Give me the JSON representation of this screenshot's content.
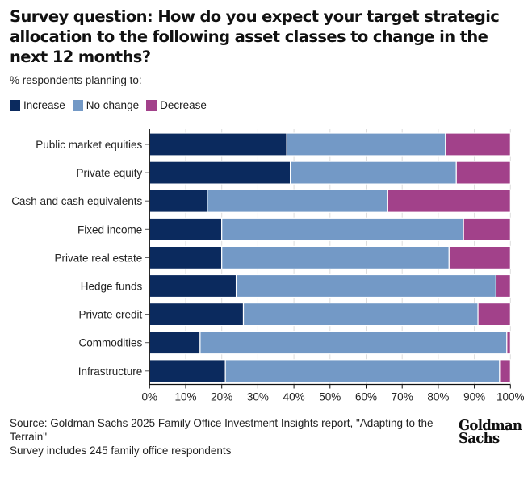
{
  "header": {
    "title": "Survey question: How do you expect your target strategic allocation to the following asset classes to change in the next 12 months?",
    "subtitle": "% respondents planning to:"
  },
  "legend": [
    {
      "label": "Increase",
      "color": "#0b2a5e"
    },
    {
      "label": "No change",
      "color": "#7399c6"
    },
    {
      "label": "Decrease",
      "color": "#a2418a"
    }
  ],
  "chart_data": {
    "type": "bar",
    "orientation": "horizontal",
    "stacked": true,
    "title": "Survey question: How do you expect your target strategic allocation to the following asset classes to change in the next 12 months?",
    "subtitle": "% respondents planning to:",
    "xlabel": "",
    "ylabel": "",
    "xlim": [
      0,
      100
    ],
    "x_ticks": [
      "0%",
      "10%",
      "20%",
      "30%",
      "40%",
      "50%",
      "60%",
      "70%",
      "80%",
      "90%",
      "100%"
    ],
    "legend_position": "top-left",
    "categories": [
      "Public market equities",
      "Private equity",
      "Cash and cash equivalents",
      "Fixed income",
      "Private real estate",
      "Hedge funds",
      "Private credit",
      "Commodities",
      "Infrastructure"
    ],
    "series": [
      {
        "name": "Increase",
        "color": "#0b2a5e",
        "values": [
          38,
          39,
          16,
          20,
          20,
          24,
          26,
          14,
          21
        ]
      },
      {
        "name": "No change",
        "color": "#7399c6",
        "values": [
          44,
          46,
          50,
          67,
          63,
          72,
          65,
          85,
          76
        ]
      },
      {
        "name": "Decrease",
        "color": "#a2418a",
        "values": [
          18,
          15,
          34,
          13,
          17,
          4,
          9,
          1,
          3
        ]
      }
    ]
  },
  "footer": {
    "source": "Source: Goldman Sachs 2025 Family Office Investment Insights report, \"Adapting to the Terrain\"",
    "note": "Survey includes 245 family office respondents"
  },
  "logo": {
    "line1": "Goldman",
    "line2": "Sachs"
  }
}
